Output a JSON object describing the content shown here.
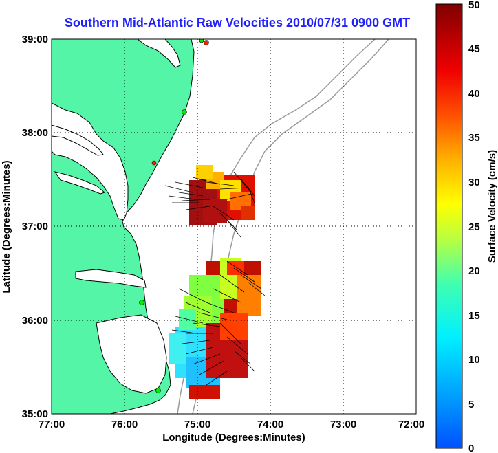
{
  "title": "Southern Mid-Atlantic Raw Velocities 2010/07/31 0900 GMT",
  "xlabel": "Longitude (Degrees:Minutes)",
  "ylabel": "Latitude (Degrees:Minutes)",
  "colorbar_label": "Surface Velocity (cm/s)",
  "x_ticks": [
    "77:00",
    "76:00",
    "75:00",
    "74:00",
    "73:00",
    "72:00"
  ],
  "y_ticks": [
    "39:00",
    "38:00",
    "37:00",
    "36:00",
    "35:00"
  ],
  "colorbar_ticks": [
    "50",
    "45",
    "40",
    "35",
    "30",
    "25",
    "20",
    "15",
    "10",
    "5",
    "0"
  ],
  "colors": {
    "land": "#55f5a8",
    "title": "#1f1fff",
    "coastline": "#000000",
    "bathymetry": "#9a9a9a",
    "station": "#00ee00",
    "station_alt": "#ff2000"
  },
  "chart_data": {
    "type": "heatmap",
    "map_extent": {
      "lon": [
        -77,
        -72
      ],
      "lat": [
        35,
        39
      ]
    },
    "value_range": [
      0,
      50
    ],
    "grid": true,
    "colorbar_position": "right",
    "regions": [
      {
        "name": "",
        "lon_range": [
          -75.55,
          -74.35
        ],
        "lat_range": [
          36.9,
          37.6
        ],
        "typical_speed_cm_s": 40
      },
      {
        "name": "",
        "lon_range": [
          -75.4,
          -74.1
        ],
        "lat_range": [
          35.15,
          36.7
        ],
        "typical_speed_cm_s": 22
      }
    ]
  }
}
